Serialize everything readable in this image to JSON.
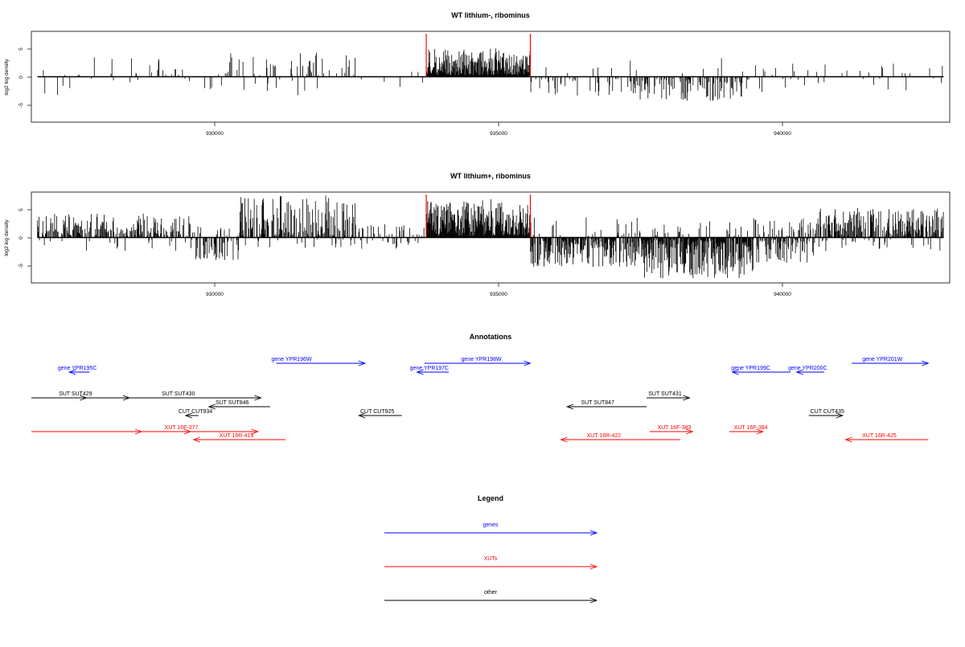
{
  "chart_data": [
    {
      "type": "bar",
      "title": "WT lithium-, ribominus",
      "ylabel": "log2 log density",
      "xlim": [
        927500,
        942500
      ],
      "ylim": [
        -8,
        8
      ],
      "x_ticks": [
        930000,
        935000,
        940000
      ],
      "x_tick_labels": [
        "930000",
        "935000",
        "940000"
      ],
      "y_ticks": [
        -5,
        0,
        5
      ],
      "y_tick_labels": [
        "-5",
        "0",
        "5"
      ],
      "baseline_range": [
        927600,
        942400
      ],
      "highlight_x": [
        933950,
        935650
      ],
      "highlight_color": "#ff0000",
      "bar_color": "#000000",
      "segments": [
        {
          "from": 927600,
          "to": 928400,
          "density": 0.07,
          "pos": 0.6,
          "min": -3.2,
          "max": 1.6
        },
        {
          "from": 928400,
          "to": 930300,
          "density": 0.1,
          "pos": 0.85,
          "min": -1.5,
          "max": 3.4
        },
        {
          "from": 930300,
          "to": 932800,
          "density": 0.17,
          "pos": 0.72,
          "min": -3.3,
          "max": 4.3
        },
        {
          "from": 932800,
          "to": 933950,
          "density": 0.02,
          "pos": 0.5,
          "min": -1.8,
          "max": 1.0
        },
        {
          "from": 933950,
          "to": 935650,
          "density": 1.0,
          "pos": 1.0,
          "min": 0.4,
          "max": 5.0
        },
        {
          "from": 935650,
          "to": 937300,
          "density": 0.2,
          "pos": 0.12,
          "min": -3.5,
          "max": 3.4
        },
        {
          "from": 937300,
          "to": 939200,
          "density": 0.42,
          "pos": 0.1,
          "min": -4.4,
          "max": 3.3
        },
        {
          "from": 939200,
          "to": 940700,
          "density": 0.12,
          "pos": 0.45,
          "min": -2.8,
          "max": 2.6
        },
        {
          "from": 940700,
          "to": 942400,
          "density": 0.13,
          "pos": 0.8,
          "min": -2.7,
          "max": 3.8
        }
      ]
    },
    {
      "type": "bar",
      "title": "WT lithium+, ribominus",
      "ylabel": "log2 log density",
      "xlim": [
        927500,
        942500
      ],
      "ylim": [
        -8,
        8
      ],
      "x_ticks": [
        930000,
        935000,
        940000
      ],
      "x_tick_labels": [
        "930000",
        "935000",
        "940000"
      ],
      "y_ticks": [
        -5,
        0,
        5
      ],
      "y_tick_labels": [
        "-5",
        "0",
        "5"
      ],
      "baseline_range": [
        927600,
        942400
      ],
      "highlight_x": [
        933950,
        935650
      ],
      "highlight_color": "#ff0000",
      "bar_color": "#000000",
      "segments": [
        {
          "from": 927600,
          "to": 930100,
          "density": 0.5,
          "pos": 0.85,
          "min": -2.5,
          "max": 4.2
        },
        {
          "from": 930100,
          "to": 930900,
          "density": 0.55,
          "pos": 0.25,
          "min": -4.0,
          "max": 2.5
        },
        {
          "from": 930900,
          "to": 932800,
          "density": 0.65,
          "pos": 0.85,
          "min": -2.2,
          "max": 7.5
        },
        {
          "from": 932800,
          "to": 933950,
          "density": 0.22,
          "pos": 0.55,
          "min": -2.0,
          "max": 2.5
        },
        {
          "from": 933950,
          "to": 935650,
          "density": 1.0,
          "pos": 1.0,
          "min": 0.5,
          "max": 6.8
        },
        {
          "from": 935650,
          "to": 937500,
          "density": 0.8,
          "pos": 0.15,
          "min": -5.2,
          "max": 3.6
        },
        {
          "from": 937500,
          "to": 939300,
          "density": 0.95,
          "pos": 0.08,
          "min": -7.2,
          "max": 3.0
        },
        {
          "from": 939300,
          "to": 940300,
          "density": 0.7,
          "pos": 0.35,
          "min": -4.5,
          "max": 3.4
        },
        {
          "from": 940300,
          "to": 942400,
          "density": 0.7,
          "pos": 0.9,
          "min": -2.5,
          "max": 5.2
        }
      ]
    }
  ],
  "annotations": {
    "title": "Annotations",
    "xlim": [
      927500,
      942500
    ],
    "colors": {
      "genes": "#0000ff",
      "XUTs": "#ff0000",
      "other": "#000000"
    },
    "features": [
      {
        "label": "gene YPR195C",
        "group": "genes",
        "from": 928450,
        "to": 928120,
        "row": 1,
        "label_x": 928250
      },
      {
        "label": "gene YPR196W",
        "group": "genes",
        "from": 931500,
        "to": 932950,
        "row": 0,
        "label_x": 931750
      },
      {
        "label": "gene YPR197C",
        "group": "genes",
        "from": 934320,
        "to": 933800,
        "row": 1,
        "label_x": 934000
      },
      {
        "label": "gene YPR198W",
        "group": "genes",
        "from": 933920,
        "to": 935650,
        "row": 0,
        "label_x": 934850
      },
      {
        "label": "gene YPR199C",
        "group": "genes",
        "from": 939900,
        "to": 938950,
        "row": 1,
        "label_x": 939250
      },
      {
        "label": "gene YPR200C",
        "group": "genes",
        "from": 940450,
        "to": 940000,
        "row": 1,
        "label_x": 940180
      },
      {
        "label": "gene YPR201W",
        "group": "genes",
        "from": 940900,
        "to": 942150,
        "row": 0,
        "label_x": 941400
      },
      {
        "label": "",
        "group": "other",
        "from": 927500,
        "to": 928400,
        "row": 3
      },
      {
        "label": "SUT SUT429",
        "group": "other",
        "from": 928400,
        "to": 929100,
        "row": 3,
        "label_x": 928220
      },
      {
        "label": "SUT SUT430",
        "group": "other",
        "from": 929100,
        "to": 931250,
        "row": 3,
        "label_x": 929900
      },
      {
        "label": "SUT SUT846",
        "group": "other",
        "from": 931400,
        "to": 930400,
        "row": 4,
        "label_x": 930780
      },
      {
        "label": "SUT SUT847",
        "group": "other",
        "from": 937550,
        "to": 936250,
        "row": 4,
        "label_x": 936750
      },
      {
        "label": "SUT SUT431",
        "group": "other",
        "from": 937550,
        "to": 938250,
        "row": 3,
        "label_x": 937850
      },
      {
        "label": "CUT CUT934",
        "group": "other",
        "from": 930230,
        "to": 930020,
        "row": 5,
        "label_x": 930180
      },
      {
        "label": "CUT CUT925",
        "group": "other",
        "from": 933550,
        "to": 932850,
        "row": 5,
        "label_x": 933150
      },
      {
        "label": "CUT CUT435",
        "group": "other",
        "from": 940200,
        "to": 940750,
        "row": 5,
        "label_x": 940500
      },
      {
        "label": "",
        "group": "XUTs",
        "from": 927500,
        "to": 929300,
        "row": 6
      },
      {
        "label": "XUT 16F-377",
        "group": "XUTs",
        "from": 929300,
        "to": 930100,
        "row": 6,
        "label_x": 929950
      },
      {
        "label": "",
        "group": "XUTs",
        "from": 930100,
        "to": 931200,
        "row": 6
      },
      {
        "label": "XUT 16R-419",
        "group": "XUTs",
        "from": 931650,
        "to": 930150,
        "row": 7,
        "label_x": 930850
      },
      {
        "label": "XUT 16R-422",
        "group": "XUTs",
        "from": 938100,
        "to": 936150,
        "row": 7,
        "label_x": 936850
      },
      {
        "label": "XUT 16F-383",
        "group": "XUTs",
        "from": 937600,
        "to": 938300,
        "row": 6,
        "label_x": 938000
      },
      {
        "label": "XUT 16F-384",
        "group": "XUTs",
        "from": 938900,
        "to": 939450,
        "row": 6,
        "label_x": 939250
      },
      {
        "label": "XUT 16R-425",
        "group": "XUTs",
        "from": 942150,
        "to": 940800,
        "row": 7,
        "label_x": 941350
      }
    ]
  },
  "legend": {
    "title": "Legend",
    "items": [
      {
        "label": "genes",
        "color": "#0000ff"
      },
      {
        "label": "XUTs",
        "color": "#ff0000"
      },
      {
        "label": "other",
        "color": "#000000"
      }
    ]
  }
}
